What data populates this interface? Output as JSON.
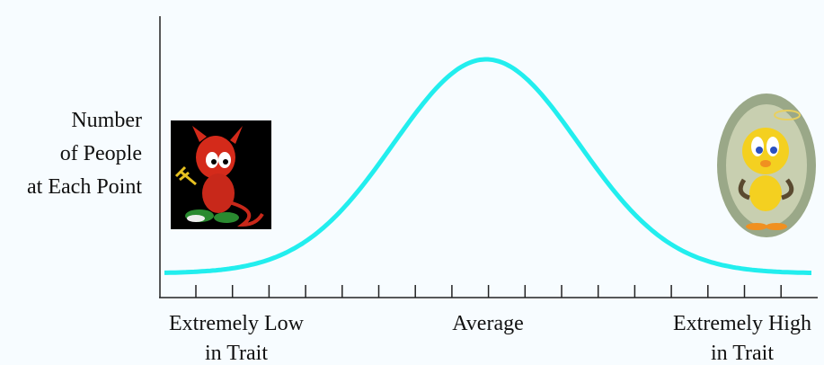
{
  "y_axis_label": [
    "Number",
    "of People",
    "at Each Point"
  ],
  "x_labels": {
    "low": [
      "Extremely Low",
      "in Trait"
    ],
    "average": "Average",
    "high": [
      "Extremely High",
      "in Trait"
    ]
  }
}
